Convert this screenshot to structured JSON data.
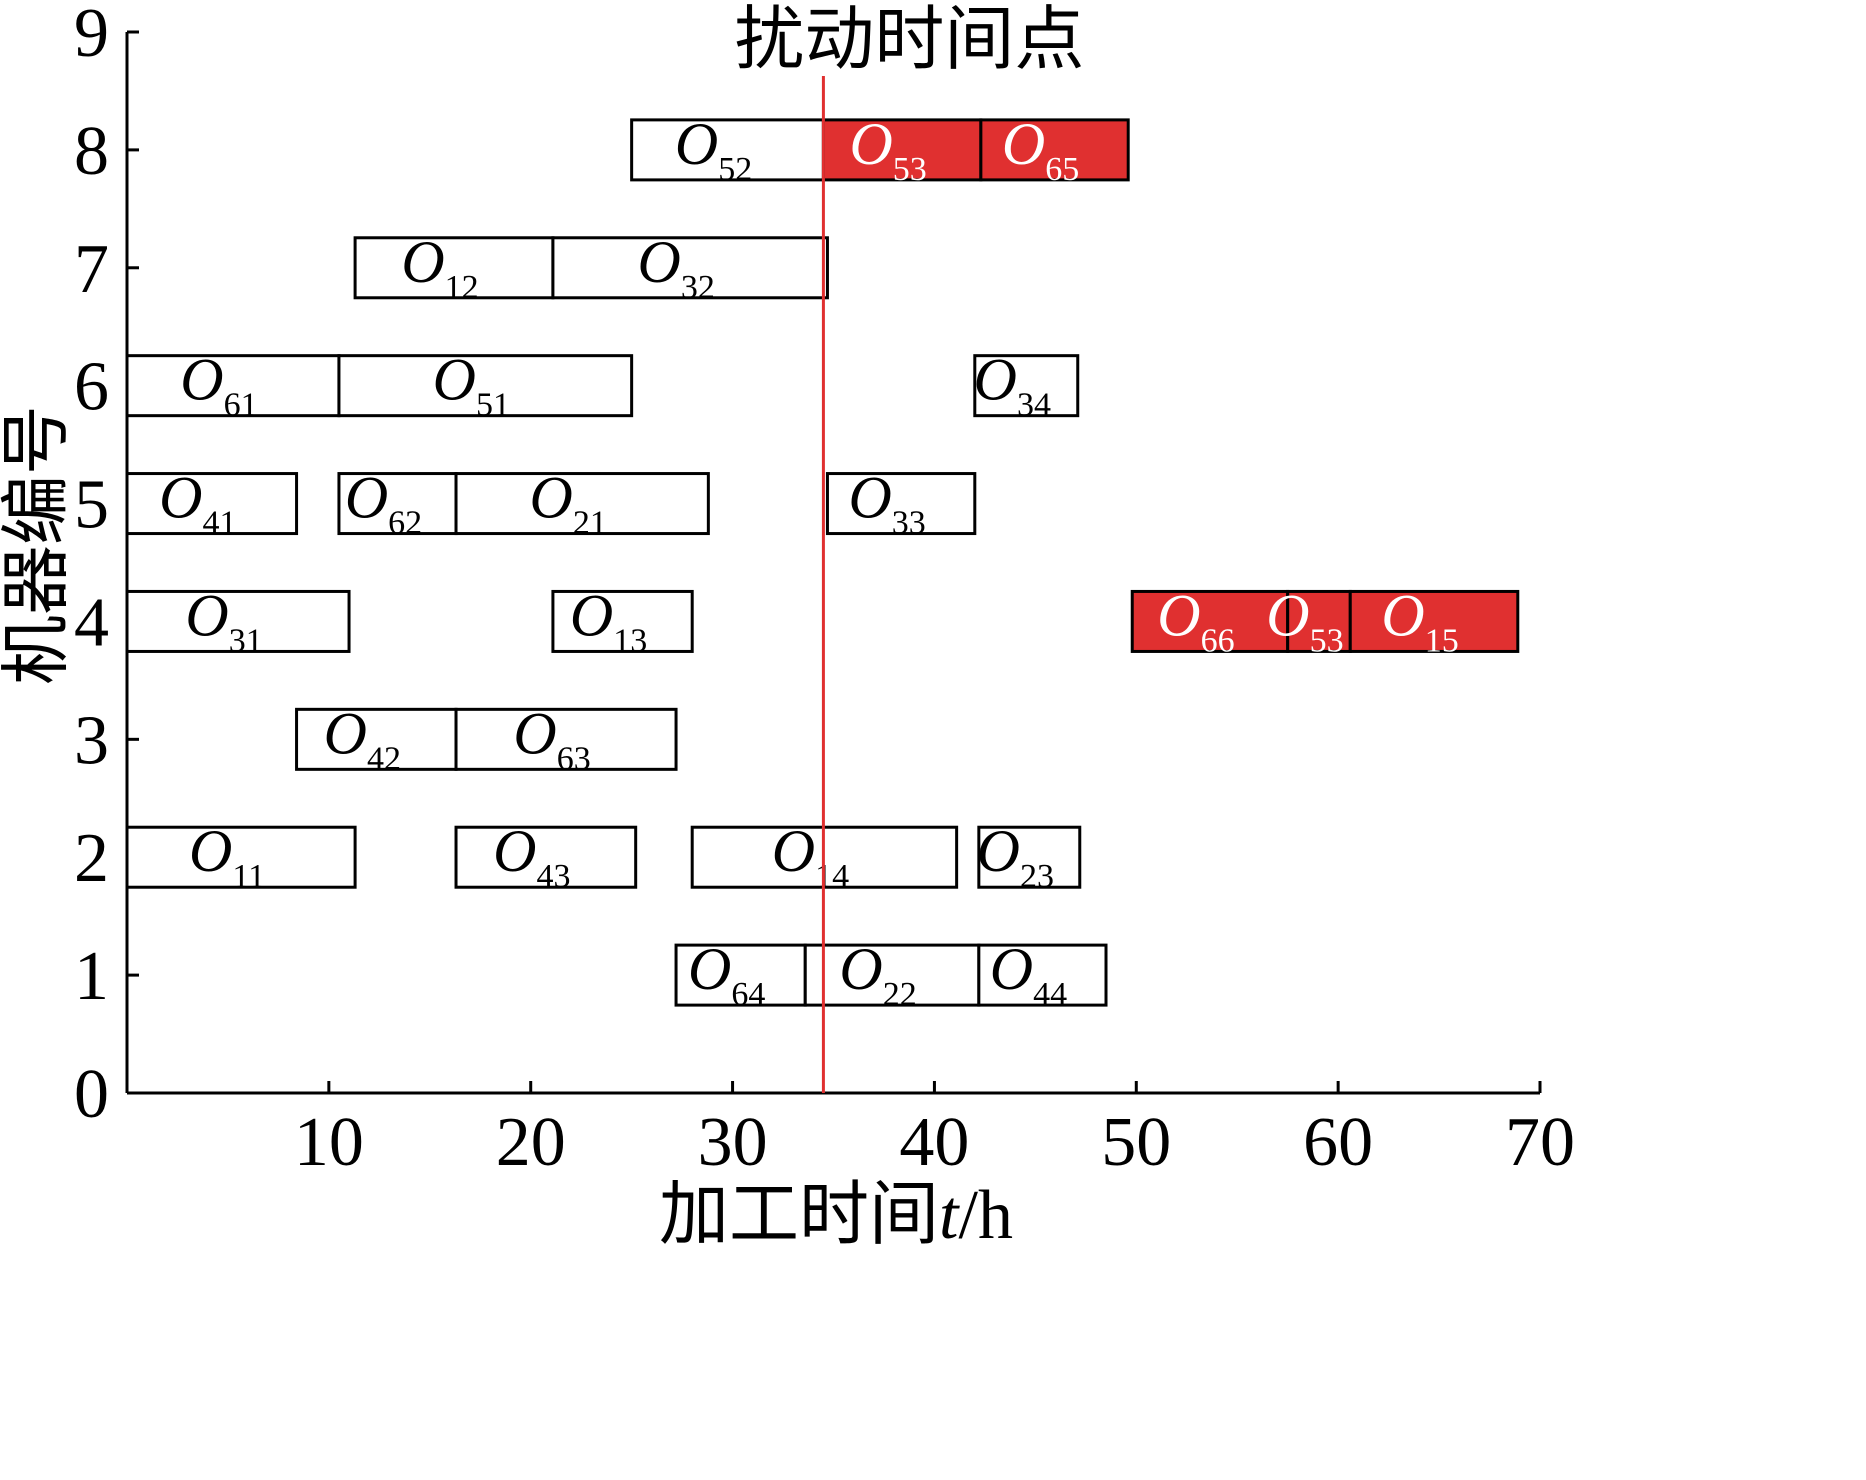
{
  "chart_data": {
    "type": "gantt",
    "title": "",
    "xlabel": "加工时间",
    "xlabel_var": "t",
    "xlabel_unit": "/h",
    "ylabel": "机器编号",
    "xlim": [
      0,
      70
    ],
    "ylim": [
      0,
      9
    ],
    "xticks": [
      "10",
      "20",
      "30",
      "40",
      "50",
      "60",
      "70"
    ],
    "yticks": [
      "0",
      "1",
      "2",
      "3",
      "4",
      "5",
      "6",
      "7",
      "8",
      "9"
    ],
    "grid": false,
    "disturbance": {
      "label": "扰动时间点",
      "x": 34.5,
      "color": "#e03030"
    },
    "colors": {
      "normal": "#ffffff",
      "rescheduled": "#e03030"
    },
    "operations": [
      {
        "machine": 8,
        "letter": "O",
        "sub": "52",
        "start": 25.0,
        "end": 34.5,
        "rescheduled": false
      },
      {
        "machine": 8,
        "letter": "O",
        "sub": "53",
        "start": 34.5,
        "end": 42.3,
        "rescheduled": true
      },
      {
        "machine": 8,
        "letter": "O",
        "sub": "65",
        "start": 42.3,
        "end": 49.6,
        "rescheduled": true
      },
      {
        "machine": 7,
        "letter": "O",
        "sub": "12",
        "start": 11.3,
        "end": 21.1,
        "rescheduled": false
      },
      {
        "machine": 7,
        "letter": "O",
        "sub": "32",
        "start": 21.1,
        "end": 34.7,
        "rescheduled": false
      },
      {
        "machine": 6,
        "letter": "O",
        "sub": "61",
        "start": 0.0,
        "end": 10.5,
        "rescheduled": false
      },
      {
        "machine": 6,
        "letter": "O",
        "sub": "51",
        "start": 10.5,
        "end": 25.0,
        "rescheduled": false
      },
      {
        "machine": 6,
        "letter": "O",
        "sub": "34",
        "start": 42.0,
        "end": 47.1,
        "rescheduled": false
      },
      {
        "machine": 5,
        "letter": "O",
        "sub": "41",
        "start": 0.0,
        "end": 8.4,
        "rescheduled": false
      },
      {
        "machine": 5,
        "letter": "O",
        "sub": "62",
        "start": 10.5,
        "end": 16.3,
        "rescheduled": false
      },
      {
        "machine": 5,
        "letter": "O",
        "sub": "21",
        "start": 16.3,
        "end": 28.8,
        "rescheduled": false
      },
      {
        "machine": 5,
        "letter": "O",
        "sub": "33",
        "start": 34.7,
        "end": 42.0,
        "rescheduled": false
      },
      {
        "machine": 4,
        "letter": "O",
        "sub": "31",
        "start": 0.0,
        "end": 11.0,
        "rescheduled": false
      },
      {
        "machine": 4,
        "letter": "O",
        "sub": "13",
        "start": 21.1,
        "end": 28.0,
        "rescheduled": false
      },
      {
        "machine": 4,
        "letter": "O",
        "sub": "66",
        "start": 49.8,
        "end": 57.5,
        "rescheduled": true
      },
      {
        "machine": 4,
        "letter": "O",
        "sub": "53",
        "start": 57.5,
        "end": 60.6,
        "rescheduled": true
      },
      {
        "machine": 4,
        "letter": "O",
        "sub": "15",
        "start": 60.6,
        "end": 68.9,
        "rescheduled": true
      },
      {
        "machine": 3,
        "letter": "O",
        "sub": "42",
        "start": 8.4,
        "end": 16.3,
        "rescheduled": false
      },
      {
        "machine": 3,
        "letter": "O",
        "sub": "63",
        "start": 16.3,
        "end": 27.2,
        "rescheduled": false
      },
      {
        "machine": 2,
        "letter": "O",
        "sub": "11",
        "start": 0.0,
        "end": 11.3,
        "rescheduled": false
      },
      {
        "machine": 2,
        "letter": "O",
        "sub": "43",
        "start": 16.3,
        "end": 25.2,
        "rescheduled": false
      },
      {
        "machine": 2,
        "letter": "O",
        "sub": "14",
        "start": 28.0,
        "end": 41.1,
        "rescheduled": false
      },
      {
        "machine": 2,
        "letter": "O",
        "sub": "23",
        "start": 42.2,
        "end": 47.2,
        "rescheduled": false
      },
      {
        "machine": 1,
        "letter": "O",
        "sub": "64",
        "start": 27.2,
        "end": 33.6,
        "rescheduled": false
      },
      {
        "machine": 1,
        "letter": "O",
        "sub": "22",
        "start": 33.6,
        "end": 42.2,
        "rescheduled": false
      },
      {
        "machine": 1,
        "letter": "O",
        "sub": "44",
        "start": 42.2,
        "end": 48.5,
        "rescheduled": false
      }
    ]
  }
}
